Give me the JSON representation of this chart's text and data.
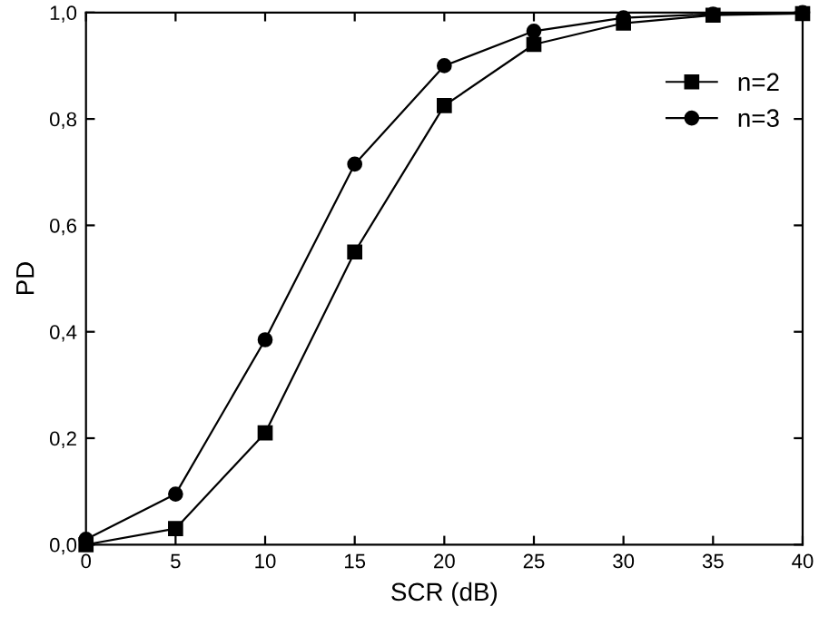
{
  "chart_data": {
    "type": "line",
    "xlabel": "SCR (dB)",
    "ylabel": "PD",
    "x": [
      0,
      5,
      10,
      15,
      20,
      25,
      30,
      35,
      40
    ],
    "series": [
      {
        "name": "n=2",
        "color": "#000000",
        "marker": "square",
        "values": [
          0.0,
          0.03,
          0.21,
          0.55,
          0.825,
          0.94,
          0.98,
          0.995,
          0.998
        ]
      },
      {
        "name": "n=3",
        "color": "#000000",
        "marker": "circle",
        "values": [
          0.01,
          0.095,
          0.385,
          0.715,
          0.9,
          0.965,
          0.99,
          0.997,
          1.0
        ]
      }
    ],
    "xlim": [
      0,
      40
    ],
    "xticks": [
      0,
      5,
      10,
      15,
      20,
      25,
      30,
      35,
      40
    ],
    "ylim": [
      0,
      1.0
    ],
    "yticks": [
      {
        "value": 0,
        "label": "0,0"
      },
      {
        "value": 0.2,
        "label": "0,2"
      },
      {
        "value": 0.4,
        "label": "0,4"
      },
      {
        "value": 0.6,
        "label": "0,6"
      },
      {
        "value": 0.8,
        "label": "0,8"
      },
      {
        "value": 1.0,
        "label": "1,0"
      }
    ],
    "grid": false,
    "legend": "top right",
    "line_style": "solid"
  }
}
